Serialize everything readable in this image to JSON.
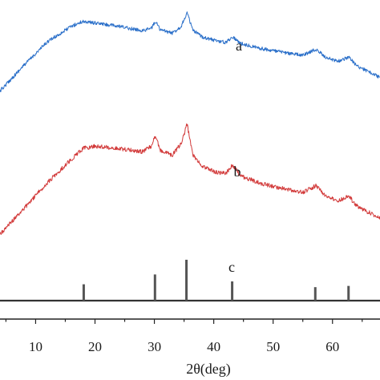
{
  "chart_data": {
    "type": "line",
    "xlabel": "2θ(deg)",
    "ylabel": "",
    "title": "",
    "xlim": [
      4,
      68
    ],
    "xticks": [
      10,
      20,
      30,
      40,
      50,
      60
    ],
    "grid": false,
    "legend": "none",
    "series": [
      {
        "name": "a",
        "color": "#2a6fc9",
        "x": [
          4,
          8,
          12,
          16,
          18,
          20,
          24,
          28,
          29.5,
          30.2,
          31,
          33,
          34.5,
          35.5,
          36.5,
          38,
          40,
          42,
          43.2,
          44.5,
          48,
          52,
          55,
          57.2,
          59,
          61,
          62.7,
          64,
          66,
          68
        ],
        "y": [
          0.08,
          0.38,
          0.66,
          0.84,
          0.9,
          0.88,
          0.84,
          0.79,
          0.82,
          0.9,
          0.8,
          0.76,
          0.84,
          1.0,
          0.79,
          0.72,
          0.68,
          0.65,
          0.72,
          0.64,
          0.58,
          0.53,
          0.5,
          0.57,
          0.47,
          0.43,
          0.48,
          0.38,
          0.31,
          0.24
        ]
      },
      {
        "name": "b",
        "color": "#d23a3a",
        "x": [
          4,
          8,
          12,
          16,
          18,
          20,
          24,
          28,
          29.5,
          30.2,
          31,
          33,
          34.5,
          35.5,
          36.5,
          38,
          40,
          42,
          43.2,
          44.5,
          48,
          52,
          55,
          57.2,
          59,
          61,
          62.7,
          64,
          66,
          68
        ],
        "y": [
          0.0,
          0.23,
          0.47,
          0.68,
          0.78,
          0.8,
          0.78,
          0.75,
          0.8,
          0.9,
          0.76,
          0.72,
          0.82,
          1.0,
          0.72,
          0.62,
          0.57,
          0.55,
          0.63,
          0.53,
          0.46,
          0.41,
          0.38,
          0.44,
          0.34,
          0.3,
          0.35,
          0.26,
          0.2,
          0.15
        ]
      },
      {
        "name": "c",
        "type": "stick",
        "color": "#555555",
        "x": [
          18.1,
          30.1,
          35.4,
          43.1,
          57.1,
          62.7
        ],
        "y": [
          0.4,
          0.64,
          1.0,
          0.47,
          0.33,
          0.36
        ]
      }
    ]
  }
}
